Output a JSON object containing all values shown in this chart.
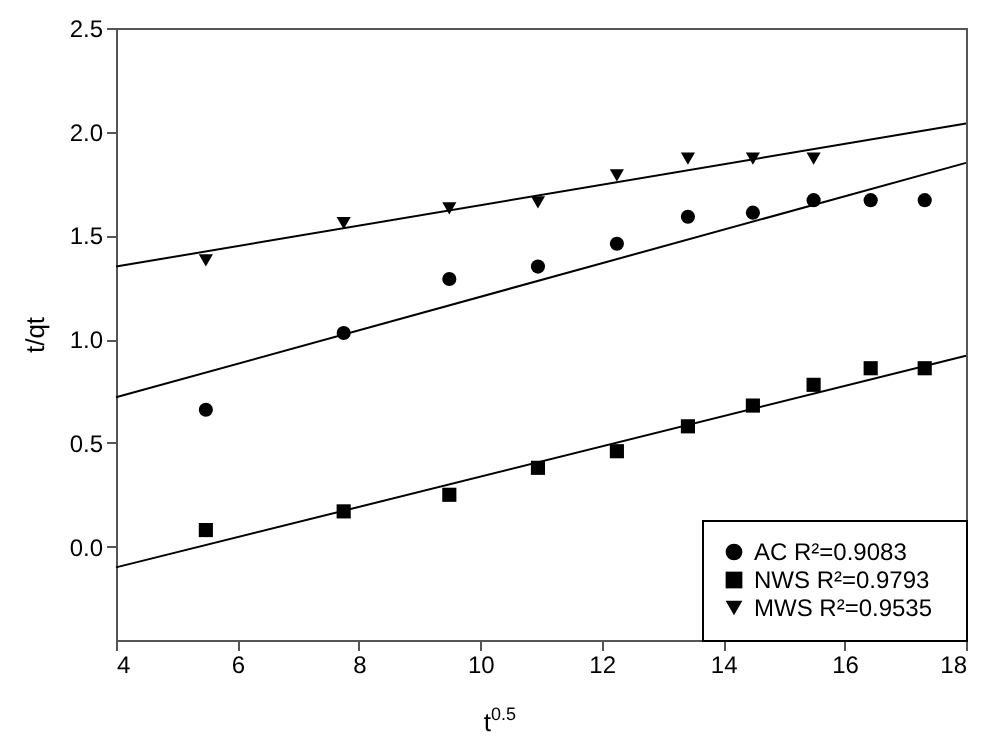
{
  "chart_data": {
    "type": "scatter",
    "xlabel": "t$^{0.5}$",
    "ylabel": "t/qt",
    "xlim": [
      4,
      18
    ],
    "ylim": [
      -0.45,
      2.5
    ],
    "xticks": [
      4,
      6,
      8,
      10,
      12,
      14,
      16,
      18
    ],
    "yticks": [
      {
        "value": 0,
        "label": "0.0"
      },
      {
        "value": 0.5,
        "label": "0.5"
      },
      {
        "value": 1,
        "label": "1.0"
      },
      {
        "value": 1.5,
        "label": "1.5"
      },
      {
        "value": 2,
        "label": "2.0"
      },
      {
        "value": 2.5,
        "label": "2.5"
      }
    ],
    "grid": false,
    "legend": "bottom right",
    "series": [
      {
        "name": "AC    R²=0.9083",
        "color": "#000000",
        "marker": "circle",
        "x": [
          5.48,
          7.75,
          9.49,
          10.95,
          12.25,
          13.42,
          14.49,
          15.49,
          16.43,
          17.32
        ],
        "values": [
          0.66,
          1.03,
          1.29,
          1.35,
          1.46,
          1.59,
          1.61,
          1.67,
          1.67,
          1.67
        ]
      },
      {
        "name": "NWS   R²=0.9793",
        "color": "#000000",
        "marker": "square",
        "x": [
          5.48,
          7.75,
          9.49,
          10.95,
          12.25,
          13.42,
          14.49,
          15.49,
          16.43,
          17.32
        ],
        "values": [
          0.08,
          0.17,
          0.25,
          0.38,
          0.46,
          0.58,
          0.68,
          0.78,
          0.86,
          0.86
        ]
      },
      {
        "name": "MWS   R²=0.9535",
        "color": "#000000",
        "marker": "triangle",
        "x": [
          5.48,
          7.75,
          9.49,
          10.95,
          12.25,
          13.42,
          14.49,
          15.49
        ],
        "values": [
          1.38,
          1.56,
          1.63,
          1.66,
          1.79,
          1.87,
          1.87,
          1.87
        ]
      },
      {
        "type": "line",
        "color": "#000000",
        "x": [
          4,
          18
        ],
        "values": [
          0.72,
          1.85
        ]
      },
      {
        "type": "line",
        "color": "#000000",
        "x": [
          4,
          18
        ],
        "values": [
          -0.1,
          0.92
        ]
      },
      {
        "type": "line",
        "color": "#000000",
        "x": [
          4,
          18
        ],
        "values": [
          1.35,
          2.04
        ]
      }
    ]
  }
}
